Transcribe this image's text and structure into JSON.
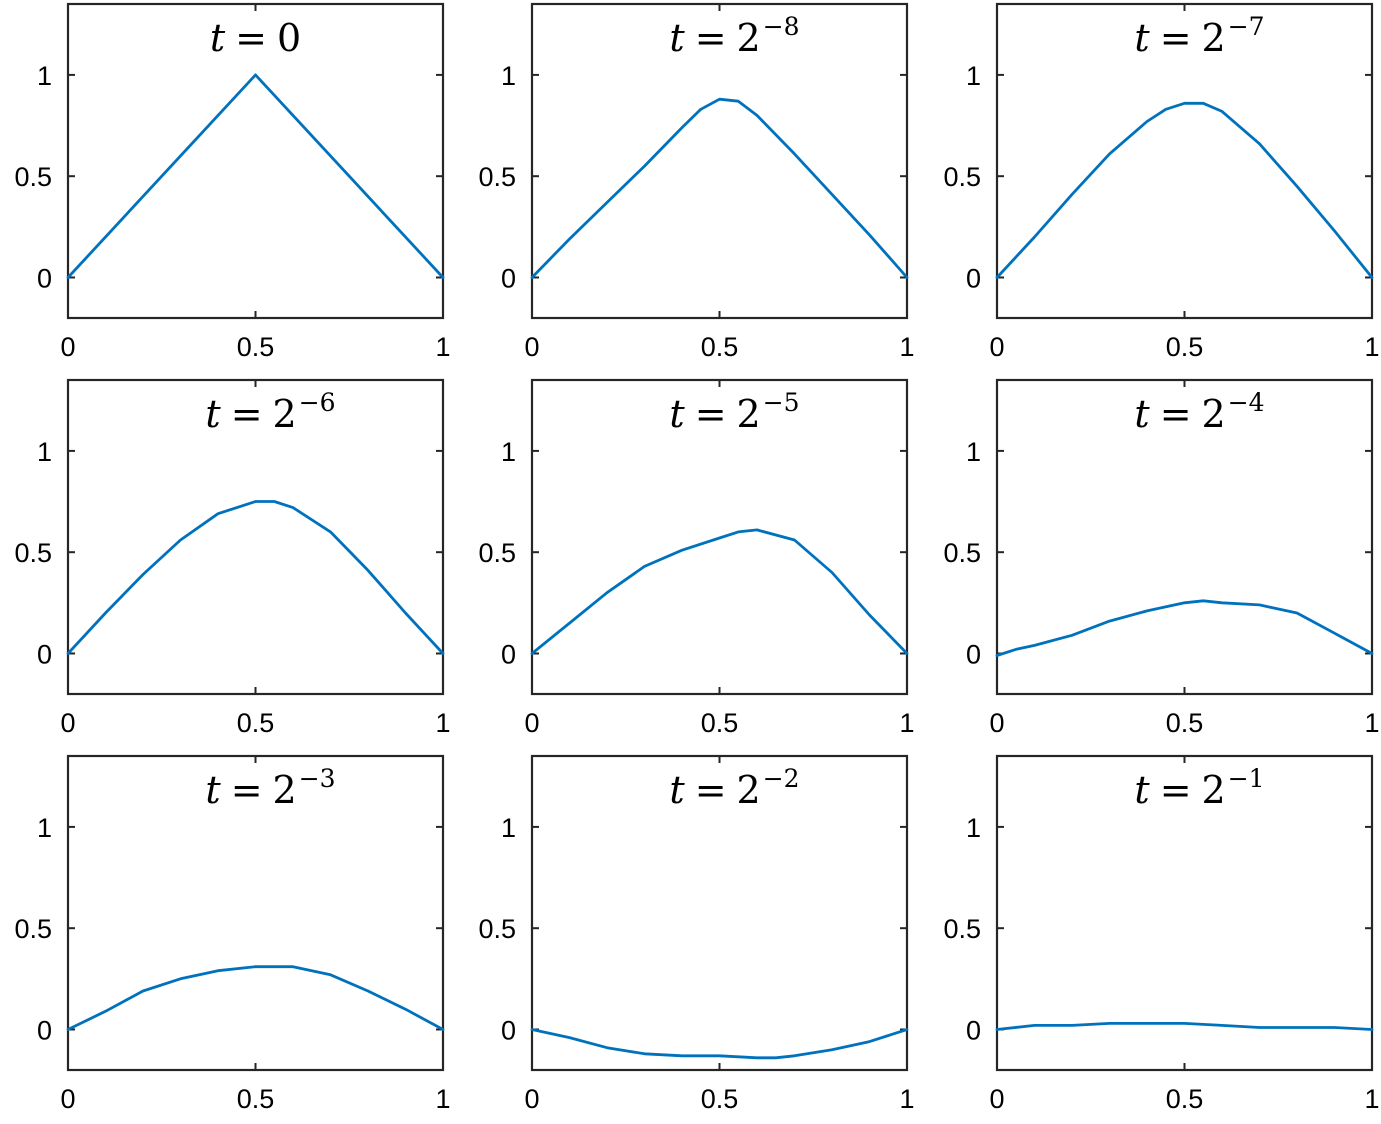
{
  "colors": {
    "line": "#0072BD",
    "axes": "#262626",
    "background": "#ffffff"
  },
  "chart_data": [
    {
      "type": "line",
      "title": {
        "var": "t",
        "eq": "=",
        "base": "0",
        "exp": ""
      },
      "xlim": [
        0,
        1
      ],
      "ylim": [
        -0.2,
        1.35
      ],
      "grid": false,
      "xticks": [
        "0",
        "0.5",
        "1"
      ],
      "yticks": [
        "0",
        "0.5",
        "1"
      ],
      "series": [
        {
          "x": [
            0,
            0.5,
            1
          ],
          "y": [
            0,
            1,
            0
          ]
        }
      ]
    },
    {
      "type": "line",
      "title": {
        "var": "t",
        "eq": "=",
        "base": "2",
        "exp": "−8"
      },
      "xlim": [
        0,
        1
      ],
      "ylim": [
        -0.2,
        1.35
      ],
      "grid": false,
      "xticks": [
        "0",
        "0.5",
        "1"
      ],
      "yticks": [
        "0",
        "0.5",
        "1"
      ],
      "series": [
        {
          "x": [
            0,
            0.1,
            0.2,
            0.3,
            0.4,
            0.45,
            0.5,
            0.55,
            0.6,
            0.7,
            0.8,
            0.9,
            1
          ],
          "y": [
            0,
            0.19,
            0.37,
            0.55,
            0.74,
            0.83,
            0.88,
            0.87,
            0.8,
            0.61,
            0.41,
            0.21,
            0
          ]
        }
      ]
    },
    {
      "type": "line",
      "title": {
        "var": "t",
        "eq": "=",
        "base": "2",
        "exp": "−7"
      },
      "xlim": [
        0,
        1
      ],
      "ylim": [
        -0.2,
        1.35
      ],
      "grid": false,
      "xticks": [
        "0",
        "0.5",
        "1"
      ],
      "yticks": [
        "0",
        "0.5",
        "1"
      ],
      "series": [
        {
          "x": [
            0,
            0.1,
            0.2,
            0.3,
            0.4,
            0.45,
            0.5,
            0.55,
            0.6,
            0.7,
            0.8,
            0.9,
            1
          ],
          "y": [
            0,
            0.2,
            0.41,
            0.61,
            0.77,
            0.83,
            0.86,
            0.86,
            0.82,
            0.66,
            0.45,
            0.23,
            0
          ]
        }
      ]
    },
    {
      "type": "line",
      "title": {
        "var": "t",
        "eq": "=",
        "base": "2",
        "exp": "−6"
      },
      "xlim": [
        0,
        1
      ],
      "ylim": [
        -0.2,
        1.35
      ],
      "grid": false,
      "xticks": [
        "0",
        "0.5",
        "1"
      ],
      "yticks": [
        "0",
        "0.5",
        "1"
      ],
      "series": [
        {
          "x": [
            0,
            0.1,
            0.2,
            0.3,
            0.4,
            0.5,
            0.55,
            0.6,
            0.7,
            0.8,
            0.9,
            1
          ],
          "y": [
            0,
            0.2,
            0.39,
            0.56,
            0.69,
            0.75,
            0.75,
            0.72,
            0.6,
            0.41,
            0.2,
            0
          ]
        }
      ]
    },
    {
      "type": "line",
      "title": {
        "var": "t",
        "eq": "=",
        "base": "2",
        "exp": "−5"
      },
      "xlim": [
        0,
        1
      ],
      "ylim": [
        -0.2,
        1.35
      ],
      "grid": false,
      "xticks": [
        "0",
        "0.5",
        "1"
      ],
      "yticks": [
        "0",
        "0.5",
        "1"
      ],
      "series": [
        {
          "x": [
            0,
            0.1,
            0.2,
            0.3,
            0.4,
            0.5,
            0.55,
            0.6,
            0.7,
            0.8,
            0.9,
            1
          ],
          "y": [
            0,
            0.15,
            0.3,
            0.43,
            0.51,
            0.57,
            0.6,
            0.61,
            0.56,
            0.4,
            0.19,
            0
          ]
        }
      ]
    },
    {
      "type": "line",
      "title": {
        "var": "t",
        "eq": "=",
        "base": "2",
        "exp": "−4"
      },
      "xlim": [
        0,
        1
      ],
      "ylim": [
        -0.2,
        1.35
      ],
      "grid": false,
      "xticks": [
        "0",
        "0.5",
        "1"
      ],
      "yticks": [
        "0",
        "0.5",
        "1"
      ],
      "series": [
        {
          "x": [
            0,
            0.05,
            0.1,
            0.2,
            0.3,
            0.4,
            0.5,
            0.55,
            0.6,
            0.7,
            0.8,
            0.9,
            1
          ],
          "y": [
            -0.01,
            0.02,
            0.04,
            0.09,
            0.16,
            0.21,
            0.25,
            0.26,
            0.25,
            0.24,
            0.2,
            0.1,
            0
          ]
        }
      ]
    },
    {
      "type": "line",
      "title": {
        "var": "t",
        "eq": "=",
        "base": "2",
        "exp": "−3"
      },
      "xlim": [
        0,
        1
      ],
      "ylim": [
        -0.2,
        1.35
      ],
      "grid": false,
      "xticks": [
        "0",
        "0.5",
        "1"
      ],
      "yticks": [
        "0",
        "0.5",
        "1"
      ],
      "series": [
        {
          "x": [
            0,
            0.1,
            0.2,
            0.3,
            0.4,
            0.5,
            0.55,
            0.6,
            0.7,
            0.8,
            0.9,
            1
          ],
          "y": [
            0,
            0.09,
            0.19,
            0.25,
            0.29,
            0.31,
            0.31,
            0.31,
            0.27,
            0.19,
            0.1,
            0
          ]
        }
      ]
    },
    {
      "type": "line",
      "title": {
        "var": "t",
        "eq": "=",
        "base": "2",
        "exp": "−2"
      },
      "xlim": [
        0,
        1
      ],
      "ylim": [
        -0.2,
        1.35
      ],
      "grid": false,
      "xticks": [
        "0",
        "0.5",
        "1"
      ],
      "yticks": [
        "0",
        "0.5",
        "1"
      ],
      "series": [
        {
          "x": [
            0,
            0.1,
            0.2,
            0.3,
            0.4,
            0.5,
            0.6,
            0.65,
            0.7,
            0.8,
            0.9,
            1
          ],
          "y": [
            0,
            -0.04,
            -0.09,
            -0.12,
            -0.13,
            -0.13,
            -0.14,
            -0.14,
            -0.13,
            -0.1,
            -0.06,
            0
          ]
        }
      ]
    },
    {
      "type": "line",
      "title": {
        "var": "t",
        "eq": "=",
        "base": "2",
        "exp": "−1"
      },
      "xlim": [
        0,
        1
      ],
      "ylim": [
        -0.2,
        1.35
      ],
      "grid": false,
      "xticks": [
        "0",
        "0.5",
        "1"
      ],
      "yticks": [
        "0",
        "0.5",
        "1"
      ],
      "series": [
        {
          "x": [
            0,
            0.1,
            0.2,
            0.3,
            0.4,
            0.5,
            0.6,
            0.7,
            0.8,
            0.9,
            1
          ],
          "y": [
            0,
            0.02,
            0.02,
            0.03,
            0.03,
            0.03,
            0.02,
            0.01,
            0.01,
            0.01,
            0
          ]
        }
      ]
    }
  ]
}
